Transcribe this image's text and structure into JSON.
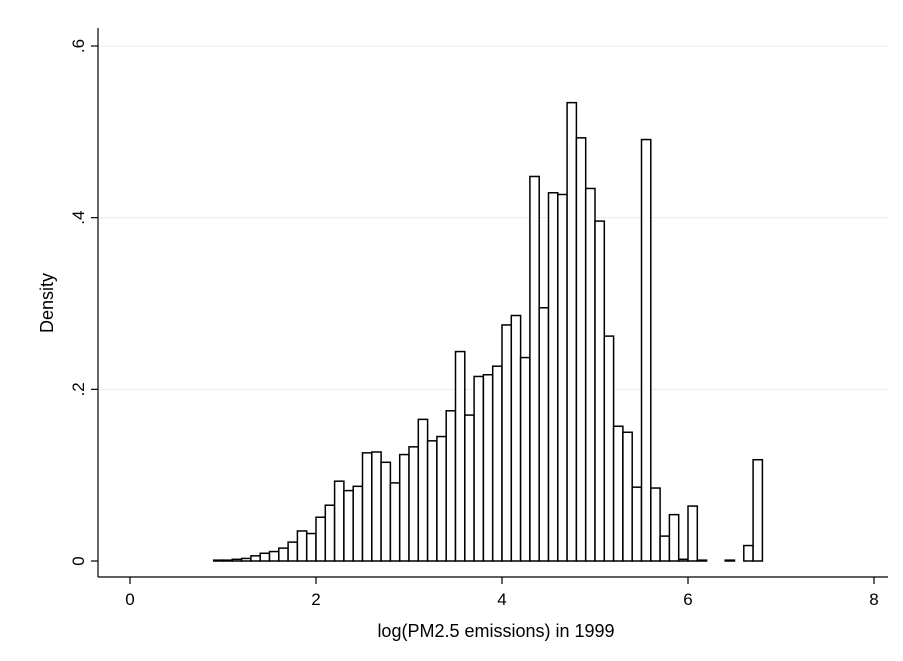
{
  "chart_data": {
    "type": "bar",
    "subtype": "histogram",
    "title": "",
    "xlabel": "log(PM2.5 emissions) in 1999",
    "ylabel": "Density",
    "xlim": [
      -0.25,
      8.25
    ],
    "ylim": [
      0,
      0.6
    ],
    "xticks": [
      0,
      2,
      4,
      6,
      8
    ],
    "xtick_labels": [
      "0",
      "2",
      "4",
      "6",
      "8"
    ],
    "yticks": [
      0,
      0.2,
      0.4,
      0.6
    ],
    "ytick_labels": [
      "0",
      ".2",
      ".4",
      ".6"
    ],
    "grid": "horizontal",
    "bin_width": 0.1,
    "bins": [
      {
        "x": -0.15,
        "y": 0
      },
      {
        "x": -0.05,
        "y": 0
      },
      {
        "x": 0.05,
        "y": 0
      },
      {
        "x": 0.15,
        "y": 0
      },
      {
        "x": 0.25,
        "y": 0
      },
      {
        "x": 0.35,
        "y": 0
      },
      {
        "x": 0.45,
        "y": 0
      },
      {
        "x": 0.55,
        "y": 0
      },
      {
        "x": 0.65,
        "y": 0
      },
      {
        "x": 0.75,
        "y": 0
      },
      {
        "x": 0.85,
        "y": 0
      },
      {
        "x": 0.95,
        "y": 0.001
      },
      {
        "x": 1.05,
        "y": 0.001
      },
      {
        "x": 1.15,
        "y": 0.002
      },
      {
        "x": 1.25,
        "y": 0.003
      },
      {
        "x": 1.35,
        "y": 0.006
      },
      {
        "x": 1.45,
        "y": 0.009
      },
      {
        "x": 1.55,
        "y": 0.011
      },
      {
        "x": 1.65,
        "y": 0.015
      },
      {
        "x": 1.75,
        "y": 0.022
      },
      {
        "x": 1.85,
        "y": 0.035
      },
      {
        "x": 1.95,
        "y": 0.032
      },
      {
        "x": 2.05,
        "y": 0.051
      },
      {
        "x": 2.15,
        "y": 0.065
      },
      {
        "x": 2.25,
        "y": 0.093
      },
      {
        "x": 2.35,
        "y": 0.082
      },
      {
        "x": 2.45,
        "y": 0.087
      },
      {
        "x": 2.55,
        "y": 0.126
      },
      {
        "x": 2.65,
        "y": 0.127
      },
      {
        "x": 2.75,
        "y": 0.115
      },
      {
        "x": 2.85,
        "y": 0.091
      },
      {
        "x": 2.95,
        "y": 0.124
      },
      {
        "x": 3.05,
        "y": 0.133
      },
      {
        "x": 3.15,
        "y": 0.165
      },
      {
        "x": 3.25,
        "y": 0.14
      },
      {
        "x": 3.35,
        "y": 0.145
      },
      {
        "x": 3.45,
        "y": 0.175
      },
      {
        "x": 3.55,
        "y": 0.244
      },
      {
        "x": 3.65,
        "y": 0.17
      },
      {
        "x": 3.75,
        "y": 0.215
      },
      {
        "x": 3.85,
        "y": 0.217
      },
      {
        "x": 3.95,
        "y": 0.227
      },
      {
        "x": 4.05,
        "y": 0.275
      },
      {
        "x": 4.15,
        "y": 0.286
      },
      {
        "x": 4.25,
        "y": 0.237
      },
      {
        "x": 4.35,
        "y": 0.448
      },
      {
        "x": 4.45,
        "y": 0.295
      },
      {
        "x": 4.55,
        "y": 0.429
      },
      {
        "x": 4.65,
        "y": 0.427
      },
      {
        "x": 4.75,
        "y": 0.534
      },
      {
        "x": 4.85,
        "y": 0.493
      },
      {
        "x": 4.95,
        "y": 0.434
      },
      {
        "x": 5.05,
        "y": 0.396
      },
      {
        "x": 5.15,
        "y": 0.262
      },
      {
        "x": 5.25,
        "y": 0.157
      },
      {
        "x": 5.35,
        "y": 0.15
      },
      {
        "x": 5.45,
        "y": 0.086
      },
      {
        "x": 5.55,
        "y": 0.491
      },
      {
        "x": 5.65,
        "y": 0.085
      },
      {
        "x": 5.75,
        "y": 0.029
      },
      {
        "x": 5.85,
        "y": 0.054
      },
      {
        "x": 5.95,
        "y": 0.002
      },
      {
        "x": 6.05,
        "y": 0.064
      },
      {
        "x": 6.15,
        "y": 0.001
      },
      {
        "x": 6.45,
        "y": 0.001
      },
      {
        "x": 6.65,
        "y": 0.018
      },
      {
        "x": 6.75,
        "y": 0.118
      }
    ],
    "bar_fill": "#ffffff",
    "bar_stroke": "#000000",
    "grid_color": "#e6ecef"
  }
}
